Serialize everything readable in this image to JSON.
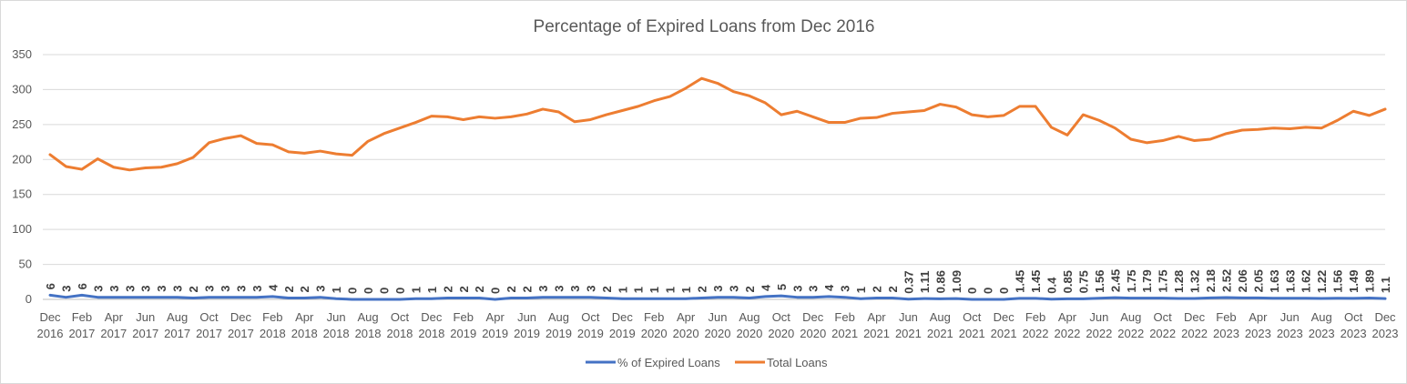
{
  "chart_data": {
    "type": "line",
    "title": "Percentage of Expired Loans from Dec 2016",
    "xlabel": "",
    "ylabel": "",
    "ylim": [
      0,
      350
    ],
    "yticks": [
      0,
      50,
      100,
      150,
      200,
      250,
      300,
      350
    ],
    "grid": true,
    "legend_position": "bottom",
    "x": [
      "Dec 2016",
      "Jan 2017",
      "Feb 2017",
      "Mar 2017",
      "Apr 2017",
      "May 2017",
      "Jun 2017",
      "Jul 2017",
      "Aug 2017",
      "Sep 2017",
      "Oct 2017",
      "Nov 2017",
      "Dec 2017",
      "Jan 2018",
      "Feb 2018",
      "Mar 2018",
      "Apr 2018",
      "May 2018",
      "Jun 2018",
      "Jul 2018",
      "Aug 2018",
      "Sep 2018",
      "Oct 2018",
      "Nov 2018",
      "Dec 2018",
      "Jan 2019",
      "Feb 2019",
      "Mar 2019",
      "Apr 2019",
      "May 2019",
      "Jun 2019",
      "Jul 2019",
      "Aug 2019",
      "Sep 2019",
      "Oct 2019",
      "Nov 2019",
      "Dec 2019",
      "Jan 2020",
      "Feb 2020",
      "Mar 2020",
      "Apr 2020",
      "May 2020",
      "Jun 2020",
      "Jul 2020",
      "Aug 2020",
      "Sep 2020",
      "Oct 2020",
      "Nov 2020",
      "Dec 2020",
      "Jan 2021",
      "Feb 2021",
      "Mar 2021",
      "Apr 2021",
      "May 2021",
      "Jun 2021",
      "Jul 2021",
      "Aug 2021",
      "Sep 2021",
      "Oct 2021",
      "Nov 2021",
      "Dec 2021",
      "Jan 2022",
      "Feb 2022",
      "Mar 2022",
      "Apr 2022",
      "May 2022",
      "Jun 2022",
      "Jul 2022",
      "Aug 2022",
      "Sep 2022",
      "Oct 2022",
      "Nov 2022",
      "Dec 2022",
      "Jan 2023",
      "Feb 2023",
      "Mar 2023",
      "Apr 2023",
      "May 2023",
      "Jun 2023",
      "Jul 2023",
      "Aug 2023",
      "Sep 2023",
      "Oct 2023",
      "Nov 2023",
      "Dec 2023"
    ],
    "x_tick_labels": [
      [
        "Dec",
        "2016"
      ],
      [
        "Feb",
        "2017"
      ],
      [
        "Apr",
        "2017"
      ],
      [
        "Jun",
        "2017"
      ],
      [
        "Aug",
        "2017"
      ],
      [
        "Oct",
        "2017"
      ],
      [
        "Dec",
        "2017"
      ],
      [
        "Feb",
        "2018"
      ],
      [
        "Apr",
        "2018"
      ],
      [
        "Jun",
        "2018"
      ],
      [
        "Aug",
        "2018"
      ],
      [
        "Oct",
        "2018"
      ],
      [
        "Dec",
        "2018"
      ],
      [
        "Feb",
        "2019"
      ],
      [
        "Apr",
        "2019"
      ],
      [
        "Jun",
        "2019"
      ],
      [
        "Aug",
        "2019"
      ],
      [
        "Oct",
        "2019"
      ],
      [
        "Dec",
        "2019"
      ],
      [
        "Feb",
        "2020"
      ],
      [
        "Apr",
        "2020"
      ],
      [
        "Jun",
        "2020"
      ],
      [
        "Aug",
        "2020"
      ],
      [
        "Oct",
        "2020"
      ],
      [
        "Dec",
        "2020"
      ],
      [
        "Feb",
        "2021"
      ],
      [
        "Apr",
        "2021"
      ],
      [
        "Jun",
        "2021"
      ],
      [
        "Aug",
        "2021"
      ],
      [
        "Oct",
        "2021"
      ],
      [
        "Dec",
        "2021"
      ],
      [
        "Feb",
        "2022"
      ],
      [
        "Apr",
        "2022"
      ],
      [
        "Jun",
        "2022"
      ],
      [
        "Aug",
        "2022"
      ],
      [
        "Oct",
        "2022"
      ],
      [
        "Dec",
        "2022"
      ],
      [
        "Feb",
        "2023"
      ],
      [
        "Apr",
        "2023"
      ],
      [
        "Jun",
        "2023"
      ],
      [
        "Aug",
        "2023"
      ],
      [
        "Oct",
        "2023"
      ],
      [
        "Dec",
        "2023"
      ]
    ],
    "series": [
      {
        "name": "% of Expired Loans",
        "color": "#4472c4",
        "values": [
          6,
          3,
          6,
          3,
          3,
          3,
          3,
          3,
          3,
          2,
          3,
          3,
          3,
          3,
          4,
          2,
          2,
          3,
          1,
          0,
          0,
          0,
          0,
          1,
          1,
          2,
          2,
          2,
          0,
          2,
          2,
          3,
          3,
          3,
          3,
          2,
          1,
          1,
          1,
          1,
          1,
          2,
          3,
          3,
          2,
          4,
          5,
          3,
          3,
          4,
          3,
          1,
          2,
          2,
          0.37,
          1.11,
          0.86,
          1.09,
          0,
          0,
          0,
          1.45,
          1.45,
          0.4,
          0.85,
          0.75,
          1.56,
          2.45,
          1.75,
          1.79,
          1.75,
          1.28,
          1.32,
          2.18,
          2.52,
          2.06,
          2.05,
          1.63,
          1.63,
          1.62,
          1.22,
          1.56,
          1.49,
          1.89,
          1.1
        ],
        "labels": [
          "6",
          "3",
          "6",
          "3",
          "3",
          "3",
          "3",
          "3",
          "3",
          "2",
          "3",
          "3",
          "3",
          "3",
          "4",
          "2",
          "2",
          "3",
          "1",
          "0",
          "0",
          "0",
          "0",
          "1",
          "1",
          "2",
          "2",
          "2",
          "0",
          "2",
          "2",
          "3",
          "3",
          "3",
          "3",
          "2",
          "1",
          "1",
          "1",
          "1",
          "1",
          "2",
          "3",
          "3",
          "2",
          "4",
          "5",
          "3",
          "3",
          "4",
          "3",
          "1",
          "2",
          "2",
          "0.37",
          "1.11",
          "0.86",
          "1.09",
          "0",
          "0",
          "0",
          "1.45",
          "1.45",
          "0.4",
          "0.85",
          "0.75",
          "1.56",
          "2.45",
          "1.75",
          "1.79",
          "1.75",
          "1.28",
          "1.32",
          "2.18",
          "2.52",
          "2.06",
          "2.05",
          "1.63",
          "1.63",
          "1.62",
          "1.22",
          "1.56",
          "1.49",
          "1.89",
          "1.1"
        ]
      },
      {
        "name": "Total Loans",
        "color": "#ed7d31",
        "values": [
          207,
          190,
          186,
          201,
          189,
          185,
          188,
          189,
          194,
          203,
          224,
          230,
          234,
          223,
          221,
          211,
          209,
          212,
          208,
          206,
          226,
          237,
          245,
          253,
          262,
          261,
          257,
          261,
          259,
          261,
          265,
          272,
          268,
          254,
          257,
          264,
          270,
          276,
          284,
          290,
          302,
          316,
          309,
          297,
          291,
          281,
          264,
          269,
          261,
          253,
          253,
          259,
          260,
          266,
          268,
          270,
          279,
          275,
          264,
          261,
          263,
          276,
          276,
          246,
          235,
          264,
          256,
          245,
          229,
          224,
          227,
          233,
          227,
          229,
          237,
          242,
          243,
          245,
          244,
          246,
          245,
          256,
          269,
          263,
          272
        ]
      }
    ],
    "legend": [
      {
        "name": "% of Expired Loans",
        "color": "#4472c4"
      },
      {
        "name": "Total Loans",
        "color": "#ed7d31"
      }
    ]
  }
}
